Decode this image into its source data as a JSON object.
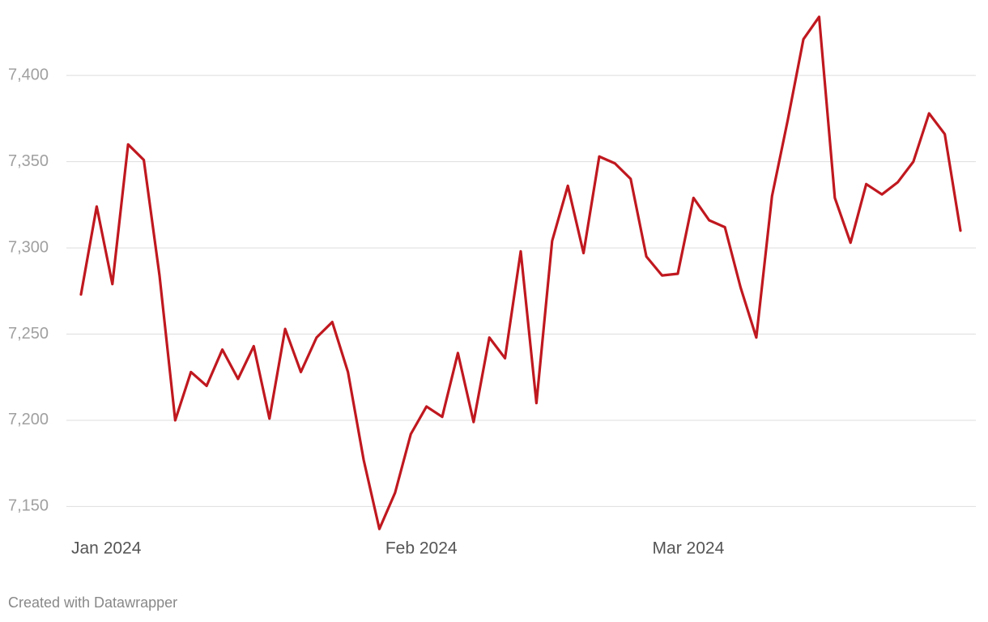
{
  "chart_data": {
    "type": "line",
    "categories": [
      "Jan 2024",
      null,
      null,
      null,
      null,
      null,
      null,
      null,
      null,
      null,
      null,
      null,
      null,
      null,
      null,
      null,
      null,
      null,
      null,
      null,
      "Feb 2024",
      null,
      null,
      null,
      null,
      null,
      null,
      null,
      null,
      null,
      null,
      null,
      null,
      null,
      null,
      null,
      null,
      "Mar 2024",
      null,
      null,
      null,
      null,
      null,
      null,
      null,
      null,
      null,
      null,
      null,
      null,
      null,
      null,
      null,
      null,
      null,
      null,
      null
    ],
    "series": [
      {
        "color": "#c0181f",
        "values": [
          7273,
          7324,
          7279,
          7360,
          7351,
          7284,
          7200,
          7228,
          7220,
          7241,
          7224,
          7243,
          7201,
          7253,
          7228,
          7248,
          7257,
          7228,
          7177,
          7137,
          7158,
          7192,
          7208,
          7202,
          7239,
          7199,
          7248,
          7236,
          7298,
          7210,
          7304,
          7336,
          7297,
          7353,
          7349,
          7340,
          7295,
          7284,
          7285,
          7329,
          7316,
          7312,
          7277,
          7248,
          7330,
          7374,
          7421,
          7434,
          7329,
          7303,
          7337,
          7331,
          7338,
          7350,
          7378,
          7366,
          7310
        ]
      }
    ],
    "ylim": [
      7130,
      7440
    ],
    "yticks": [
      {
        "value": 7150,
        "label": "7,150"
      },
      {
        "value": 7200,
        "label": "7,200"
      },
      {
        "value": 7250,
        "label": "7,250"
      },
      {
        "value": 7300,
        "label": "7,300"
      },
      {
        "value": 7350,
        "label": "7,350"
      },
      {
        "value": 7400,
        "label": "7,400"
      }
    ],
    "grid": true,
    "footer": "Created with Datawrapper"
  }
}
